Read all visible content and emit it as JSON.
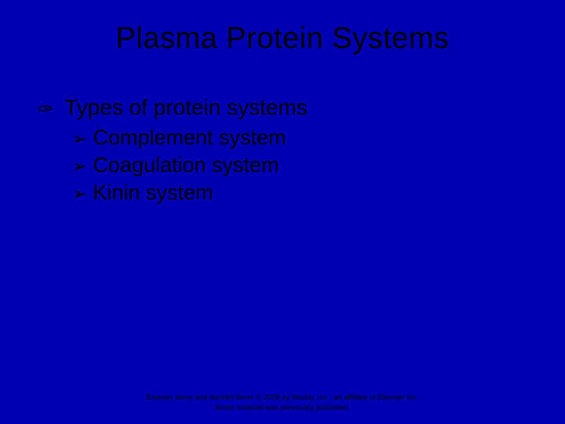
{
  "slide": {
    "title": "Plasma Protein Systems",
    "background_color": "#0000b3",
    "title_color": "#000000",
    "title_fontsize": 38,
    "body_text_color": "#000000",
    "body_fontsize": 28,
    "sub_fontsize": 27,
    "top_bullet_glyph": "✑",
    "sub_bullet_glyph": "➢",
    "content": {
      "heading": "Types of protein systems",
      "items": [
        "Complement system",
        "Coagulation system",
        "Kinin system"
      ]
    },
    "footer": {
      "line1": "Elsevier items and derived items © 2008 by Mosby, Inc., an affiliate of Elsevier Inc.",
      "line2": "Some material was previously published."
    }
  }
}
